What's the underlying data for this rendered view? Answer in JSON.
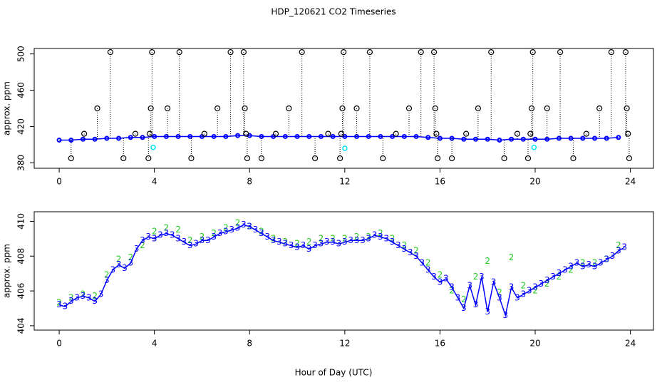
{
  "chart_data": [
    {
      "type": "scatter",
      "title": "HDP_120621  CO2 Timeseries",
      "ylabel": "approx. ppm",
      "xlim": [
        -1.05,
        24.97
      ],
      "xticks": [
        0,
        4,
        8,
        12,
        16,
        20,
        24
      ],
      "ylim": [
        374,
        506
      ],
      "yticks": [
        380,
        420,
        460,
        500
      ],
      "series": [
        {
          "color": "#0000ff",
          "style": "line",
          "x": [
            0,
            0.5,
            1,
            1.5,
            2,
            2.5,
            3,
            3.5,
            4,
            4.5,
            5,
            5.5,
            6,
            6.5,
            7,
            7.5,
            8,
            8.5,
            9,
            9.5,
            10,
            10.5,
            11,
            11.5,
            12,
            12.5,
            13,
            13.5,
            14,
            14.5,
            15,
            15.5,
            16,
            16.5,
            17,
            17.5,
            18,
            18.5,
            19,
            19.5,
            20,
            20.5,
            21,
            21.5,
            22,
            22.5,
            23,
            23.5
          ],
          "values": [
            405,
            405,
            406,
            406,
            407,
            407,
            408,
            408,
            409,
            409,
            409,
            409,
            409,
            409,
            409,
            410,
            410,
            409,
            409,
            409,
            409,
            409,
            409,
            409,
            409,
            409,
            409,
            409,
            409,
            409,
            409,
            408,
            407,
            407,
            406,
            406,
            406,
            405,
            406,
            406,
            406,
            406,
            407,
            407,
            407,
            407,
            407,
            408
          ]
        },
        {
          "color": "#000000",
          "style": "drops",
          "x": [
            0.5,
            1.05,
            1.6,
            2.15,
            2.7,
            3.2,
            3.75,
            3.8,
            3.85,
            3.9,
            4.55,
            5.05,
            5.55,
            6.1,
            6.65,
            7.2,
            7.75,
            7.8,
            7.85,
            7.9,
            8.5,
            9.1,
            9.65,
            10.2,
            10.75,
            11.3,
            11.8,
            11.85,
            11.9,
            11.95,
            12.5,
            13.05,
            13.6,
            14.15,
            14.7,
            15.2,
            15.75,
            15.8,
            15.85,
            15.9,
            16.5,
            17.1,
            17.6,
            18.15,
            18.7,
            19.25,
            19.7,
            19.8,
            19.85,
            19.9,
            20.5,
            21.05,
            21.6,
            22.15,
            22.7,
            23.2,
            23.8,
            23.85,
            23.9,
            23.95
          ],
          "values": [
            385,
            412,
            440,
            502,
            385,
            412,
            385,
            412,
            440,
            502,
            440,
            502,
            385,
            412,
            440,
            502,
            502,
            440,
            412,
            385,
            385,
            412,
            440,
            502,
            385,
            412,
            385,
            412,
            440,
            502,
            440,
            502,
            385,
            412,
            440,
            502,
            502,
            440,
            412,
            385,
            385,
            412,
            440,
            502,
            385,
            412,
            385,
            412,
            440,
            502,
            440,
            502,
            385,
            412,
            440,
            502,
            502,
            440,
            412,
            385
          ]
        },
        {
          "color": "#00e5ee",
          "style": "circles",
          "x": [
            3.95,
            12.0,
            19.95
          ],
          "values": [
            397,
            396,
            397
          ]
        }
      ]
    },
    {
      "type": "scatter",
      "xlabel": "Hour of Day (UTC)",
      "ylabel": "approx. ppm",
      "xlim": [
        -1.05,
        24.97
      ],
      "xticks": [
        0,
        4,
        8,
        12,
        16,
        20,
        24
      ],
      "ylim": [
        403.75,
        410.55
      ],
      "yticks": [
        404,
        406,
        408,
        410
      ],
      "series": [
        {
          "color": "#22cc22",
          "style": "text",
          "marker": "2",
          "x": [
            0,
            0.5,
            1,
            1.5,
            2,
            2.5,
            3,
            3.5,
            4,
            4.5,
            5,
            5.5,
            6,
            6.5,
            7,
            7.5,
            8,
            8.5,
            9,
            9.5,
            10,
            10.5,
            11,
            11.5,
            12,
            12.5,
            13,
            13.5,
            14,
            14.5,
            15,
            15.5,
            16,
            16.5,
            17,
            17.5,
            18,
            18.5,
            19,
            19.5,
            20,
            20.5,
            21,
            21.5,
            22,
            22.5,
            23,
            23.5
          ],
          "values": [
            405.3,
            405.6,
            405.8,
            405.7,
            406.9,
            407.8,
            407.9,
            408.6,
            409.4,
            409.6,
            409.5,
            408.9,
            409.1,
            409.3,
            409.6,
            409.9,
            409.7,
            409.4,
            409.0,
            408.8,
            408.7,
            408.8,
            409.0,
            409.0,
            409.0,
            409.1,
            409.1,
            409.3,
            409.0,
            408.6,
            408.3,
            407.6,
            406.9,
            406.0,
            405.5,
            406.8,
            407.7,
            405.9,
            407.9,
            406.3,
            406.0,
            406.4,
            406.8,
            407.2,
            407.6,
            407.6,
            407.8,
            408.6
          ]
        },
        {
          "color": "#0000ff",
          "style": "linetext",
          "marker": "3",
          "x": [
            0,
            0.25,
            0.5,
            0.75,
            1,
            1.25,
            1.5,
            1.75,
            2,
            2.25,
            2.5,
            2.75,
            3,
            3.25,
            3.5,
            3.75,
            4,
            4.25,
            4.5,
            4.75,
            5,
            5.25,
            5.5,
            5.75,
            6,
            6.25,
            6.5,
            6.75,
            7,
            7.25,
            7.5,
            7.75,
            8,
            8.25,
            8.5,
            8.75,
            9,
            9.25,
            9.5,
            9.75,
            10,
            10.25,
            10.5,
            10.75,
            11,
            11.25,
            11.5,
            11.75,
            12,
            12.25,
            12.5,
            12.75,
            13,
            13.25,
            13.5,
            13.75,
            14,
            14.25,
            14.5,
            14.75,
            15,
            15.25,
            15.5,
            15.75,
            16,
            16.25,
            16.5,
            16.75,
            17,
            17.25,
            17.5,
            17.75,
            18,
            18.25,
            18.5,
            18.75,
            19,
            19.25,
            19.5,
            19.75,
            20,
            20.25,
            20.5,
            20.75,
            21,
            21.25,
            21.5,
            21.75,
            22,
            22.25,
            22.5,
            22.75,
            23,
            23.25,
            23.5,
            23.75
          ],
          "values": [
            405.2,
            405.1,
            405.4,
            405.6,
            405.7,
            405.6,
            405.4,
            405.8,
            406.6,
            407.2,
            407.5,
            407.3,
            407.6,
            408.4,
            408.9,
            409.1,
            409.0,
            409.2,
            409.3,
            409.2,
            409.0,
            408.8,
            408.6,
            408.7,
            408.9,
            408.9,
            409.1,
            409.3,
            409.4,
            409.5,
            409.6,
            409.8,
            409.7,
            409.5,
            409.3,
            409.1,
            408.9,
            408.8,
            408.7,
            408.6,
            408.5,
            408.6,
            408.4,
            408.6,
            408.7,
            408.8,
            408.8,
            408.7,
            408.8,
            408.9,
            408.9,
            408.9,
            409.0,
            409.2,
            409.1,
            409.0,
            408.8,
            408.6,
            408.4,
            408.2,
            408.0,
            407.6,
            407.2,
            406.8,
            406.5,
            406.7,
            406.2,
            405.6,
            405.0,
            406.3,
            405.2,
            406.8,
            404.8,
            406.5,
            405.6,
            404.6,
            406.2,
            405.6,
            405.8,
            406.0,
            406.2,
            406.4,
            406.6,
            406.8,
            407.0,
            407.2,
            407.4,
            407.6,
            407.4,
            407.5,
            407.4,
            407.6,
            407.8,
            408.0,
            408.3,
            408.5
          ]
        }
      ]
    }
  ]
}
